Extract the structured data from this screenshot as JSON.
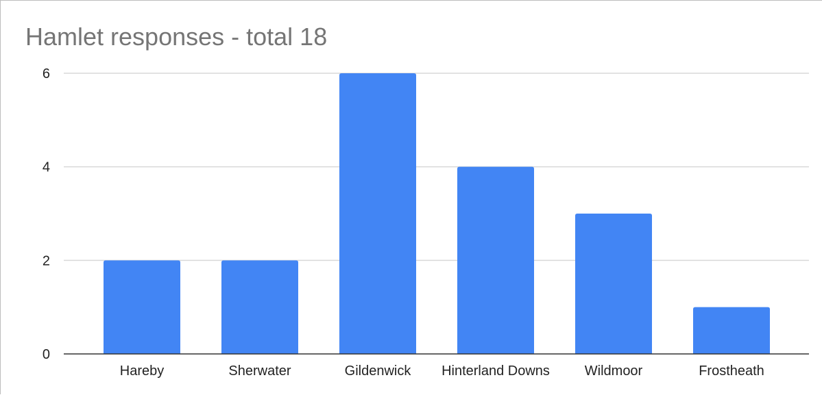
{
  "chart_data": {
    "type": "bar",
    "title": "Hamlet responses - total 18",
    "categories": [
      "Hareby",
      "Sherwater",
      "Gildenwick",
      "Hinterland Downs",
      "Wildmoor",
      "Frostheath"
    ],
    "values": [
      2,
      2,
      6,
      4,
      3,
      1
    ],
    "xlabel": "",
    "ylabel": "",
    "ylim": [
      0,
      6
    ],
    "yticks": [
      "0",
      "2",
      "4",
      "6"
    ],
    "grid": true,
    "legend": "none",
    "colors": {
      "bar": "#4285f4",
      "grid": "#d9d9d9",
      "axis": "#333333",
      "title": "#757575"
    }
  }
}
